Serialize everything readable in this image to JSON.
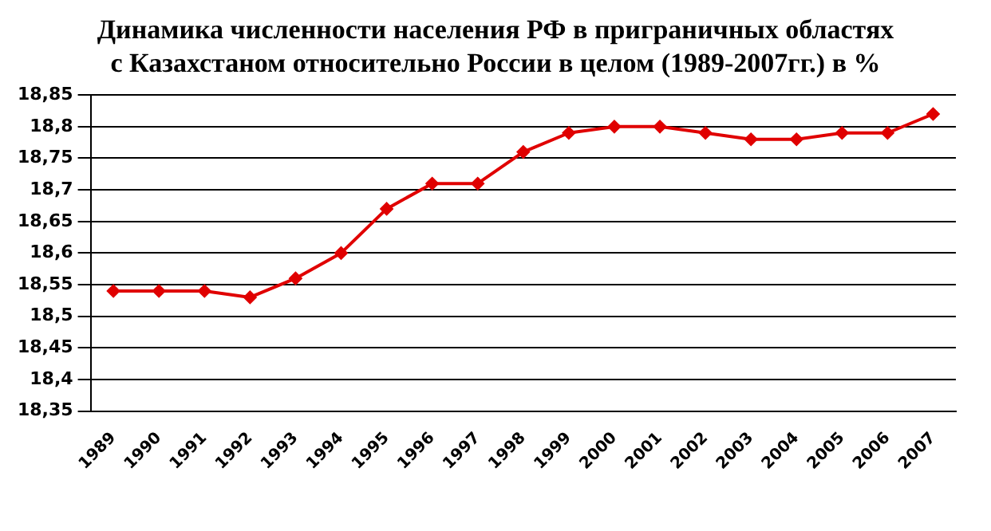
{
  "chart_data": {
    "type": "line",
    "title": "Динамика численности населения РФ в приграничных областях с Казахстаном относительно России в целом (1989-2007гг.) в %",
    "categories": [
      "1989",
      "1990",
      "1991",
      "1992",
      "1993",
      "1994",
      "1995",
      "1996",
      "1997",
      "1998",
      "1999",
      "2000",
      "2001",
      "2002",
      "2003",
      "2004",
      "2005",
      "2006",
      "2007"
    ],
    "series": [
      {
        "color": "#e00000",
        "values": [
          18.54,
          18.54,
          18.54,
          18.53,
          18.56,
          18.6,
          18.67,
          18.71,
          18.71,
          18.76,
          18.79,
          18.8,
          18.8,
          18.79,
          18.78,
          18.78,
          18.79,
          18.79,
          18.82
        ]
      }
    ],
    "ylim": [
      18.35,
      18.85
    ],
    "yticks": [
      {
        "value": 18.35,
        "label": "18,35"
      },
      {
        "value": 18.4,
        "label": "18,4"
      },
      {
        "value": 18.45,
        "label": "18,45"
      },
      {
        "value": 18.5,
        "label": "18,5"
      },
      {
        "value": 18.55,
        "label": "18,55"
      },
      {
        "value": 18.6,
        "label": "18,6"
      },
      {
        "value": 18.65,
        "label": "18,65"
      },
      {
        "value": 18.7,
        "label": "18,7"
      },
      {
        "value": 18.75,
        "label": "18,75"
      },
      {
        "value": 18.8,
        "label": "18,8"
      },
      {
        "value": 18.85,
        "label": "18,85"
      }
    ],
    "grid": "y",
    "legend": false,
    "marker": "diamond",
    "line_style": "solid"
  }
}
